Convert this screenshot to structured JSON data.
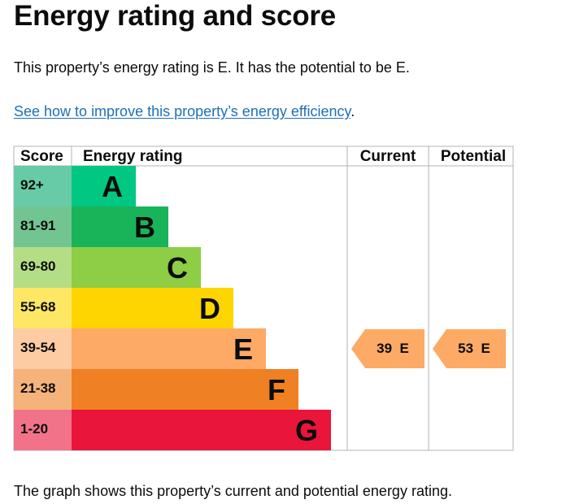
{
  "page": {
    "title": "Energy rating and score",
    "summary": "This property’s energy rating is E. It has the potential to be E.",
    "improve_link": "See how to improve this property’s energy efficiency",
    "improve_suffix": ".",
    "caption": "The graph shows this property’s current and potential energy rating."
  },
  "chart_data": {
    "type": "table",
    "headers": {
      "score": "Score",
      "rating": "Energy rating",
      "current": "Current",
      "potential": "Potential"
    },
    "bands": [
      {
        "range": "92+",
        "letter": "A",
        "color": "#00c781",
        "score_color": "#67cba7"
      },
      {
        "range": "81-91",
        "letter": "B",
        "color": "#19b459",
        "score_color": "#72c590"
      },
      {
        "range": "69-80",
        "letter": "C",
        "color": "#8dce46",
        "score_color": "#b4de85"
      },
      {
        "range": "55-68",
        "letter": "D",
        "color": "#ffd500",
        "score_color": "#ffe766"
      },
      {
        "range": "39-54",
        "letter": "E",
        "color": "#fcaa65",
        "score_color": "#fdcca3"
      },
      {
        "range": "21-38",
        "letter": "F",
        "color": "#ef8023",
        "score_color": "#f5b37b"
      },
      {
        "range": "1-20",
        "letter": "G",
        "color": "#e9153b",
        "score_color": "#f27389"
      }
    ],
    "current": {
      "score": 39,
      "band": "E",
      "label": "39  E",
      "color": "#fcaa65"
    },
    "potential": {
      "score": 53,
      "band": "E",
      "label": "53  E",
      "color": "#fcaa65"
    }
  }
}
